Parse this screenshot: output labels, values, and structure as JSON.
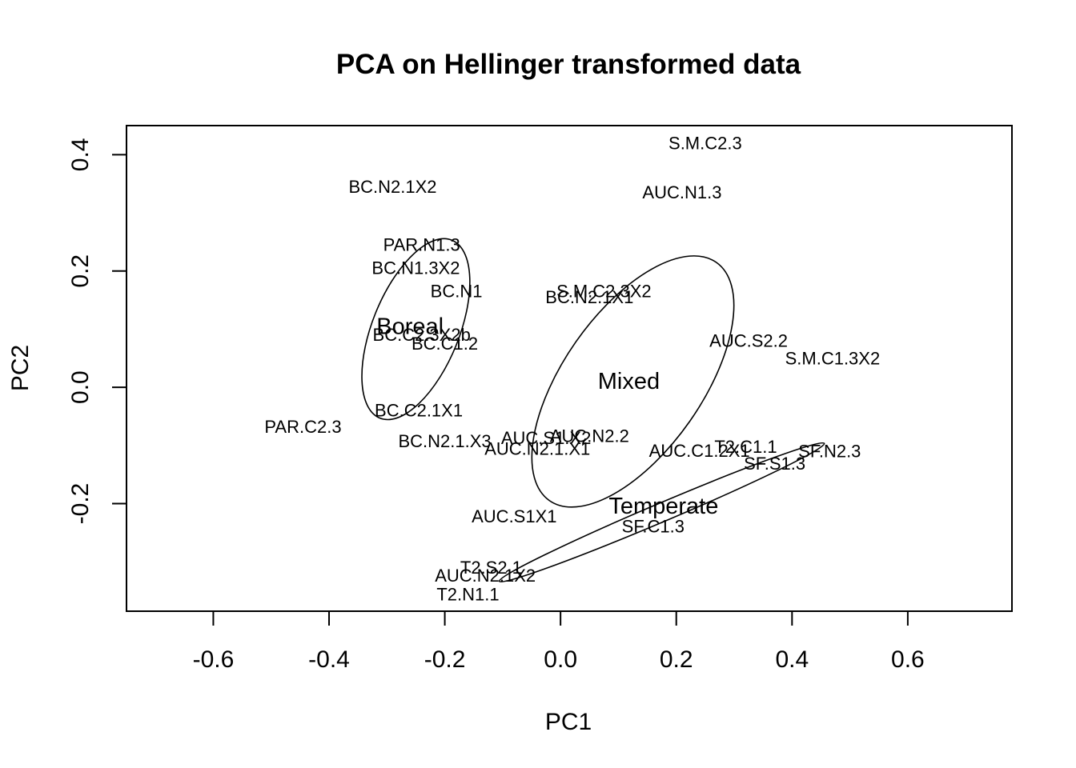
{
  "chart_data": {
    "type": "scatter",
    "title": "PCA on Hellinger transformed data",
    "xlabel": "PC1",
    "ylabel": "PC2",
    "xlim": [
      -0.75,
      0.78
    ],
    "ylim": [
      -0.385,
      0.45
    ],
    "xticks": [
      -0.6,
      -0.4,
      -0.2,
      0.0,
      0.2,
      0.4,
      0.6
    ],
    "xtick_labels": [
      "-0.6",
      "-0.4",
      "-0.2",
      "0.0",
      "0.2",
      "0.4",
      "0.6"
    ],
    "yticks": [
      -0.2,
      0.0,
      0.2,
      0.4
    ],
    "ytick_labels": [
      "-0.2",
      "0.0",
      "0.2",
      "0.4"
    ],
    "grid": false,
    "points": [
      {
        "label": "S.M.C2.3",
        "x": 0.25,
        "y": 0.42
      },
      {
        "label": "AUC.N1.3",
        "x": 0.21,
        "y": 0.335
      },
      {
        "label": "BC.N2.1X2",
        "x": -0.29,
        "y": 0.345
      },
      {
        "label": "PAR.N1.3",
        "x": -0.24,
        "y": 0.245
      },
      {
        "label": "BC.N1.3X2",
        "x": -0.25,
        "y": 0.205
      },
      {
        "label": "BC.N1",
        "x": -0.18,
        "y": 0.165
      },
      {
        "label": "S.M.C2.3X2",
        "x": 0.075,
        "y": 0.165
      },
      {
        "label": "BC.N2.1X1",
        "x": 0.05,
        "y": 0.155
      },
      {
        "label": "BC.C2.3X2b",
        "x": -0.24,
        "y": 0.09
      },
      {
        "label": "BC.C1.2",
        "x": -0.2,
        "y": 0.075
      },
      {
        "label": "AUC.S2.2",
        "x": 0.325,
        "y": 0.08
      },
      {
        "label": "S.M.C1.3X2",
        "x": 0.47,
        "y": 0.05
      },
      {
        "label": "BC.C2.1X1",
        "x": -0.245,
        "y": -0.04
      },
      {
        "label": "PAR.C2.3",
        "x": -0.445,
        "y": -0.068
      },
      {
        "label": "BC.N2.1.X3",
        "x": -0.2,
        "y": -0.093
      },
      {
        "label": "AUC.S1.X2",
        "x": -0.025,
        "y": -0.087
      },
      {
        "label": "AUC.N2.2",
        "x": 0.05,
        "y": -0.084
      },
      {
        "label": "AUC.N2.1.X1",
        "x": -0.04,
        "y": -0.106
      },
      {
        "label": "AUC.C1.2X1",
        "x": 0.24,
        "y": -0.109
      },
      {
        "label": "T2.C1.1",
        "x": 0.32,
        "y": -0.102
      },
      {
        "label": "SF.N2.3",
        "x": 0.465,
        "y": -0.11
      },
      {
        "label": "SF.S1.3",
        "x": 0.37,
        "y": -0.131
      },
      {
        "label": "AUC.S1X1",
        "x": -0.08,
        "y": -0.222
      },
      {
        "label": "SF.C1.3",
        "x": 0.16,
        "y": -0.239
      },
      {
        "label": "T2.S2.1",
        "x": -0.12,
        "y": -0.31
      },
      {
        "label": "AUC.N2.1X2",
        "x": -0.13,
        "y": -0.324
      },
      {
        "label": "T2.N1.1",
        "x": -0.16,
        "y": -0.356
      }
    ],
    "groups": [
      {
        "name": "Boreal",
        "label_x": -0.26,
        "label_y": 0.104,
        "cx": -0.25,
        "cy": 0.1,
        "rx": 0.075,
        "ry": 0.165,
        "angle_deg": 22
      },
      {
        "name": "Mixed",
        "label_x": 0.118,
        "label_y": 0.01,
        "cx": 0.125,
        "cy": 0.01,
        "rx": 0.12,
        "ry": 0.25,
        "angle_deg": 35
      },
      {
        "name": "Temperate",
        "label_x": 0.178,
        "label_y": -0.205,
        "cx": 0.175,
        "cy": -0.215,
        "rx": 0.305,
        "ry": 0.016,
        "angle_deg": -23
      }
    ]
  }
}
